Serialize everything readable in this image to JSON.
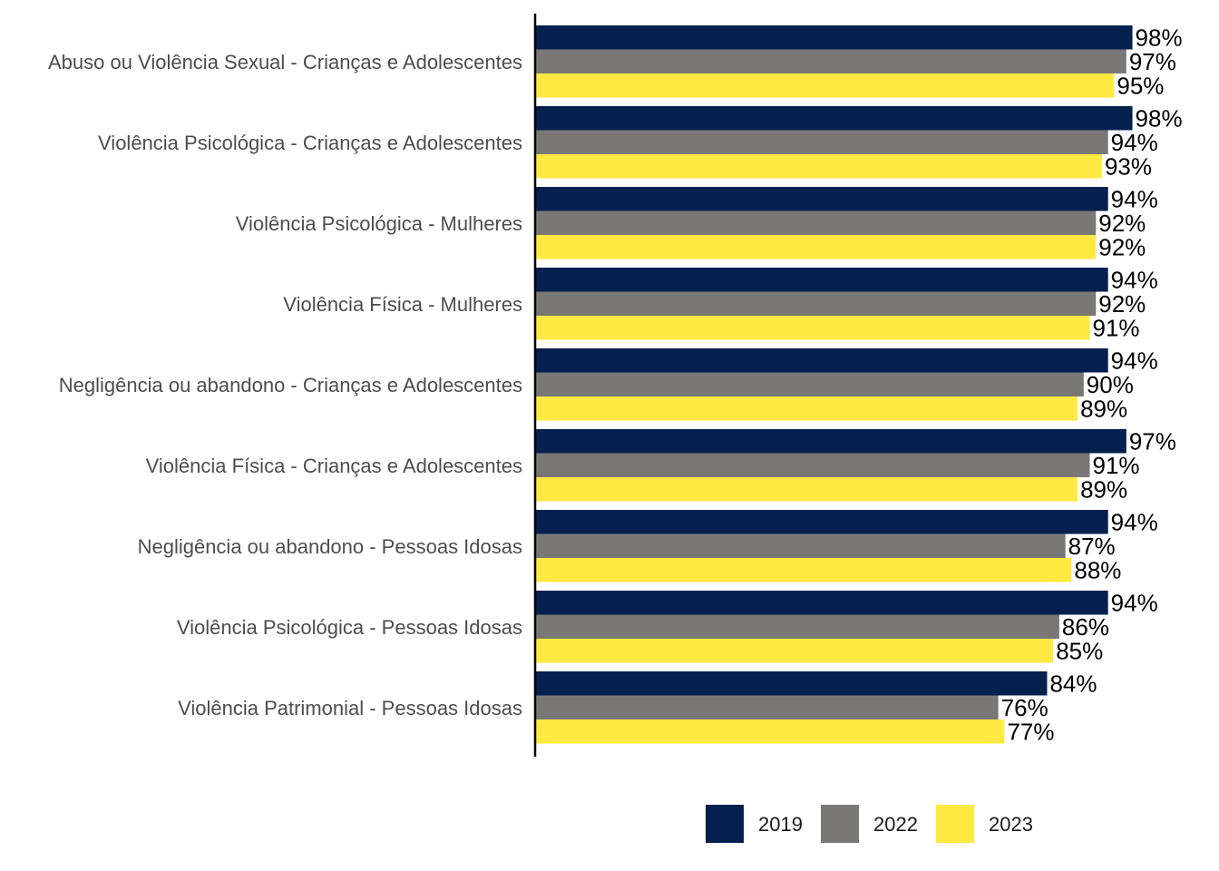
{
  "chart_data": {
    "type": "bar",
    "orientation": "horizontal",
    "xlim": [
      0,
      100
    ],
    "grid": false,
    "legend_position": "bottom",
    "value_suffix": "%",
    "categories": [
      "Abuso ou Violência Sexual - Crianças e Adolescentes",
      "Violência Psicológica - Crianças e Adolescentes",
      "Violência Psicológica - Mulheres",
      "Violência Física - Mulheres",
      "Negligência ou abandono - Crianças e Adolescentes",
      "Violência Física - Crianças e Adolescentes",
      "Negligência ou abandono - Pessoas Idosas",
      "Violência Psicológica - Pessoas Idosas",
      "Violência Patrimonial - Pessoas Idosas"
    ],
    "series": [
      {
        "name": "2019",
        "color": "#03204f",
        "values": [
          98,
          98,
          94,
          94,
          94,
          97,
          94,
          94,
          84
        ]
      },
      {
        "name": "2022",
        "color": "#7a7876",
        "values": [
          97,
          94,
          92,
          92,
          90,
          91,
          87,
          86,
          76
        ]
      },
      {
        "name": "2023",
        "color": "#ffe942",
        "values": [
          95,
          93,
          92,
          91,
          89,
          89,
          88,
          85,
          77
        ]
      }
    ]
  }
}
